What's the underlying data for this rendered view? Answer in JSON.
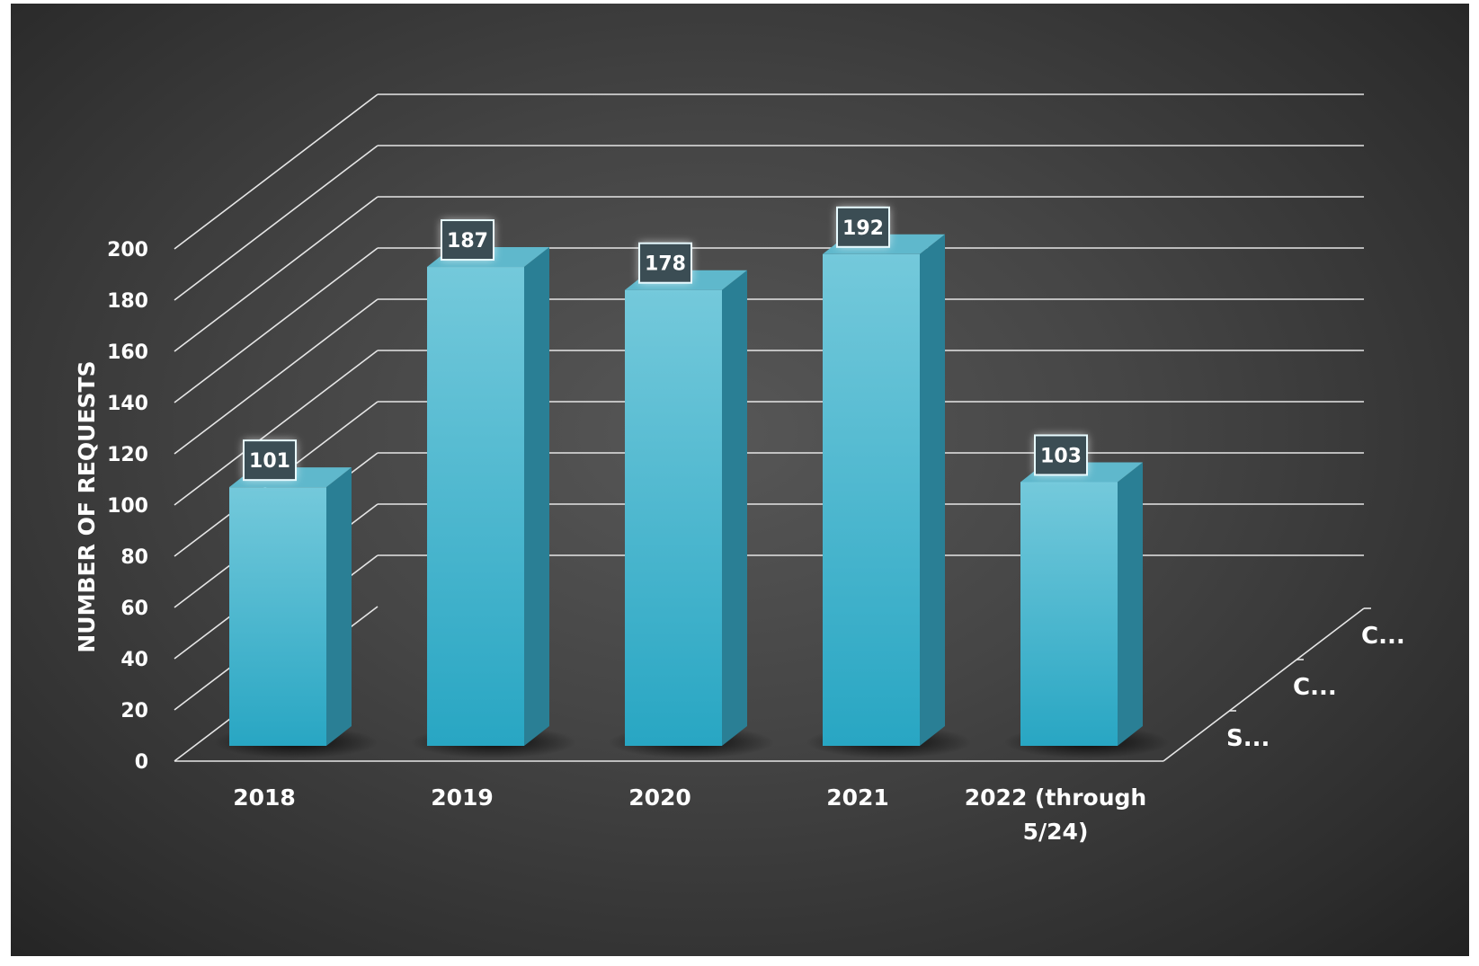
{
  "chart_data": {
    "type": "bar",
    "title": "",
    "xlabel": "",
    "ylabel": "NUMBER OF REQUESTS",
    "categories": [
      "2018",
      "2019",
      "2020",
      "2021",
      "2022 (through 5/24)"
    ],
    "category_lines": [
      [
        "2018"
      ],
      [
        "2019"
      ],
      [
        "2020"
      ],
      [
        "2021"
      ],
      [
        "2022 (through",
        "5/24)"
      ]
    ],
    "series": [
      {
        "values": [
          101,
          187,
          178,
          192,
          103
        ]
      }
    ],
    "value_labels": [
      "101",
      "187",
      "178",
      "192",
      "103"
    ],
    "ylim": [
      0,
      200
    ],
    "y_ticks": [
      "0",
      "20",
      "40",
      "60",
      "80",
      "100",
      "120",
      "140",
      "160",
      "180",
      "200"
    ],
    "depth_labels": [
      "S...",
      "C...",
      "C..."
    ],
    "three_d": true,
    "grid": true,
    "legend": "none",
    "colors": {
      "bar_front_top": "#74c9db",
      "bar_front_bottom": "#28a6c3",
      "bar_side": "#2a7f95",
      "bar_top": "#5fb8cc",
      "grid": "#e6e6e6",
      "background": "#3a3a3a",
      "text": "#ffffff"
    }
  }
}
